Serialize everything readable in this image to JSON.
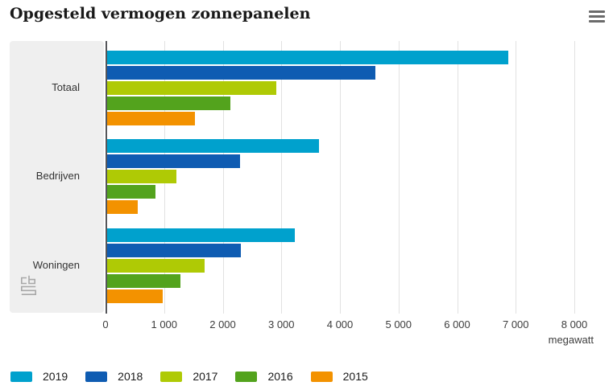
{
  "header": {
    "title": "Opgesteld vermogen zonnepanelen"
  },
  "chart_data": {
    "type": "bar",
    "orientation": "horizontal",
    "title": "Opgesteld vermogen zonnepanelen",
    "categories": [
      "Totaal",
      "Bedrijven",
      "Woningen"
    ],
    "series": [
      {
        "name": "2019",
        "color": "#00a1cd",
        "values": [
          6874,
          3643,
          3231
        ]
      },
      {
        "name": "2018",
        "color": "#0f5cb2",
        "values": [
          4608,
          2301,
          2307
        ]
      },
      {
        "name": "2017",
        "color": "#afca05",
        "values": [
          2911,
          1216,
          1695
        ]
      },
      {
        "name": "2016",
        "color": "#53a31d",
        "values": [
          2135,
          856,
          1279
        ]
      },
      {
        "name": "2015",
        "color": "#f39200",
        "values": [
          1526,
          545,
          981
        ]
      }
    ],
    "xlabel": "megawatt",
    "ylabel": "",
    "xlim": [
      0,
      8000
    ],
    "x_ticks": [
      "0",
      "1 000",
      "2 000",
      "3 000",
      "4 000",
      "5 000",
      "6 000",
      "7 000",
      "8 000"
    ],
    "grid": "vertical",
    "legend_position": "bottom-left",
    "source_logo": "cbs-logo"
  },
  "colors": {
    "axis_line": "#55565a",
    "gridline": "#e2e2e2",
    "category_panel": "#efefef",
    "menu_icon": "#6b6b6b",
    "logo_stroke": "#a8a8a8"
  }
}
